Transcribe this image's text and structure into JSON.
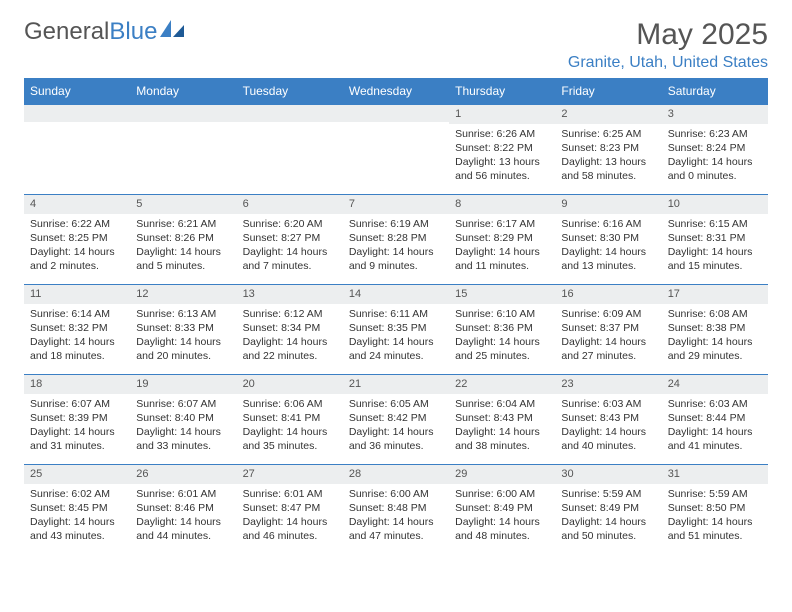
{
  "brand": {
    "part1": "General",
    "part2": "Blue"
  },
  "title": "May 2025",
  "location": "Granite, Utah, United States",
  "colors": {
    "accent": "#3b7fc4",
    "header_bg": "#3b7fc4",
    "header_text": "#ffffff",
    "daynum_bg": "#eceeef",
    "text": "#333333",
    "muted": "#555555",
    "page_bg": "#ffffff"
  },
  "weekdays": [
    "Sunday",
    "Monday",
    "Tuesday",
    "Wednesday",
    "Thursday",
    "Friday",
    "Saturday"
  ],
  "weeks": [
    [
      null,
      null,
      null,
      null,
      {
        "n": "1",
        "sunrise": "6:26 AM",
        "sunset": "8:22 PM",
        "daylight": "13 hours and 56 minutes."
      },
      {
        "n": "2",
        "sunrise": "6:25 AM",
        "sunset": "8:23 PM",
        "daylight": "13 hours and 58 minutes."
      },
      {
        "n": "3",
        "sunrise": "6:23 AM",
        "sunset": "8:24 PM",
        "daylight": "14 hours and 0 minutes."
      }
    ],
    [
      {
        "n": "4",
        "sunrise": "6:22 AM",
        "sunset": "8:25 PM",
        "daylight": "14 hours and 2 minutes."
      },
      {
        "n": "5",
        "sunrise": "6:21 AM",
        "sunset": "8:26 PM",
        "daylight": "14 hours and 5 minutes."
      },
      {
        "n": "6",
        "sunrise": "6:20 AM",
        "sunset": "8:27 PM",
        "daylight": "14 hours and 7 minutes."
      },
      {
        "n": "7",
        "sunrise": "6:19 AM",
        "sunset": "8:28 PM",
        "daylight": "14 hours and 9 minutes."
      },
      {
        "n": "8",
        "sunrise": "6:17 AM",
        "sunset": "8:29 PM",
        "daylight": "14 hours and 11 minutes."
      },
      {
        "n": "9",
        "sunrise": "6:16 AM",
        "sunset": "8:30 PM",
        "daylight": "14 hours and 13 minutes."
      },
      {
        "n": "10",
        "sunrise": "6:15 AM",
        "sunset": "8:31 PM",
        "daylight": "14 hours and 15 minutes."
      }
    ],
    [
      {
        "n": "11",
        "sunrise": "6:14 AM",
        "sunset": "8:32 PM",
        "daylight": "14 hours and 18 minutes."
      },
      {
        "n": "12",
        "sunrise": "6:13 AM",
        "sunset": "8:33 PM",
        "daylight": "14 hours and 20 minutes."
      },
      {
        "n": "13",
        "sunrise": "6:12 AM",
        "sunset": "8:34 PM",
        "daylight": "14 hours and 22 minutes."
      },
      {
        "n": "14",
        "sunrise": "6:11 AM",
        "sunset": "8:35 PM",
        "daylight": "14 hours and 24 minutes."
      },
      {
        "n": "15",
        "sunrise": "6:10 AM",
        "sunset": "8:36 PM",
        "daylight": "14 hours and 25 minutes."
      },
      {
        "n": "16",
        "sunrise": "6:09 AM",
        "sunset": "8:37 PM",
        "daylight": "14 hours and 27 minutes."
      },
      {
        "n": "17",
        "sunrise": "6:08 AM",
        "sunset": "8:38 PM",
        "daylight": "14 hours and 29 minutes."
      }
    ],
    [
      {
        "n": "18",
        "sunrise": "6:07 AM",
        "sunset": "8:39 PM",
        "daylight": "14 hours and 31 minutes."
      },
      {
        "n": "19",
        "sunrise": "6:07 AM",
        "sunset": "8:40 PM",
        "daylight": "14 hours and 33 minutes."
      },
      {
        "n": "20",
        "sunrise": "6:06 AM",
        "sunset": "8:41 PM",
        "daylight": "14 hours and 35 minutes."
      },
      {
        "n": "21",
        "sunrise": "6:05 AM",
        "sunset": "8:42 PM",
        "daylight": "14 hours and 36 minutes."
      },
      {
        "n": "22",
        "sunrise": "6:04 AM",
        "sunset": "8:43 PM",
        "daylight": "14 hours and 38 minutes."
      },
      {
        "n": "23",
        "sunrise": "6:03 AM",
        "sunset": "8:43 PM",
        "daylight": "14 hours and 40 minutes."
      },
      {
        "n": "24",
        "sunrise": "6:03 AM",
        "sunset": "8:44 PM",
        "daylight": "14 hours and 41 minutes."
      }
    ],
    [
      {
        "n": "25",
        "sunrise": "6:02 AM",
        "sunset": "8:45 PM",
        "daylight": "14 hours and 43 minutes."
      },
      {
        "n": "26",
        "sunrise": "6:01 AM",
        "sunset": "8:46 PM",
        "daylight": "14 hours and 44 minutes."
      },
      {
        "n": "27",
        "sunrise": "6:01 AM",
        "sunset": "8:47 PM",
        "daylight": "14 hours and 46 minutes."
      },
      {
        "n": "28",
        "sunrise": "6:00 AM",
        "sunset": "8:48 PM",
        "daylight": "14 hours and 47 minutes."
      },
      {
        "n": "29",
        "sunrise": "6:00 AM",
        "sunset": "8:49 PM",
        "daylight": "14 hours and 48 minutes."
      },
      {
        "n": "30",
        "sunrise": "5:59 AM",
        "sunset": "8:49 PM",
        "daylight": "14 hours and 50 minutes."
      },
      {
        "n": "31",
        "sunrise": "5:59 AM",
        "sunset": "8:50 PM",
        "daylight": "14 hours and 51 minutes."
      }
    ]
  ],
  "labels": {
    "sunrise": "Sunrise:",
    "sunset": "Sunset:",
    "daylight": "Daylight:"
  }
}
